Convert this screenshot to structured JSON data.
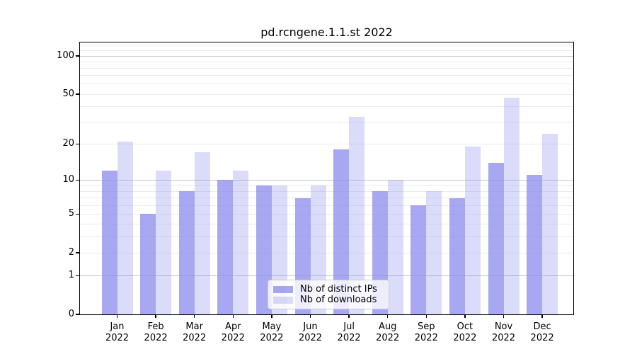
{
  "title": "pd.rcngene.1.1.st 2022",
  "legend": {
    "items": [
      {
        "label": "Nb of distinct IPs",
        "swatch": "bar-swatch-dark"
      },
      {
        "label": "Nb of downloads",
        "swatch": "bar-swatch-light"
      }
    ]
  },
  "colors": {
    "bar_base": "#8888ee",
    "bar_distinct_ips": "rgba(136,136,238,0.74)",
    "bar_downloads": "rgba(136,136,238,0.30)",
    "major_grid": "#c6c6c6",
    "minor_grid": "#ebebeb",
    "spine": "#000000",
    "text": "#000000",
    "legend_border": "#cccccc",
    "legend_bg": "rgba(255,255,255,0.8)"
  },
  "chart_data": {
    "type": "bar",
    "title": "pd.rcngene.1.1.st 2022",
    "categories": [
      "Jan 2022",
      "Feb 2022",
      "Mar 2022",
      "Apr 2022",
      "May 2022",
      "Jun 2022",
      "Jul 2022",
      "Aug 2022",
      "Sep 2022",
      "Oct 2022",
      "Nov 2022",
      "Dec 2022"
    ],
    "month_labels": [
      "Jan",
      "Feb",
      "Mar",
      "Apr",
      "May",
      "Jun",
      "Jul",
      "Aug",
      "Sep",
      "Oct",
      "Nov",
      "Dec"
    ],
    "year_label": "2022",
    "series": [
      {
        "name": "Nb of distinct IPs",
        "values": [
          12,
          5,
          8,
          10,
          9,
          7,
          18,
          8,
          6,
          7,
          14,
          11
        ],
        "color": "rgba(136,136,238,0.74)"
      },
      {
        "name": "Nb of downloads",
        "values": [
          21,
          12,
          17,
          12,
          9,
          9,
          33,
          10,
          8,
          19,
          47,
          24
        ],
        "color": "rgba(136,136,238,0.30)"
      }
    ],
    "xlabel": "",
    "ylabel": "",
    "yscale": "log1p",
    "ylim": [
      0,
      128
    ],
    "y_ticks": [
      0,
      1,
      2,
      5,
      10,
      20,
      50,
      100
    ],
    "y_major_grid": [
      1,
      10,
      100
    ],
    "y_minor_grid": [
      2,
      3,
      4,
      5,
      6,
      7,
      8,
      9,
      20,
      30,
      40,
      50,
      60,
      70,
      80,
      90,
      110,
      120
    ],
    "grid": true,
    "legend_position": "lower center inside"
  }
}
